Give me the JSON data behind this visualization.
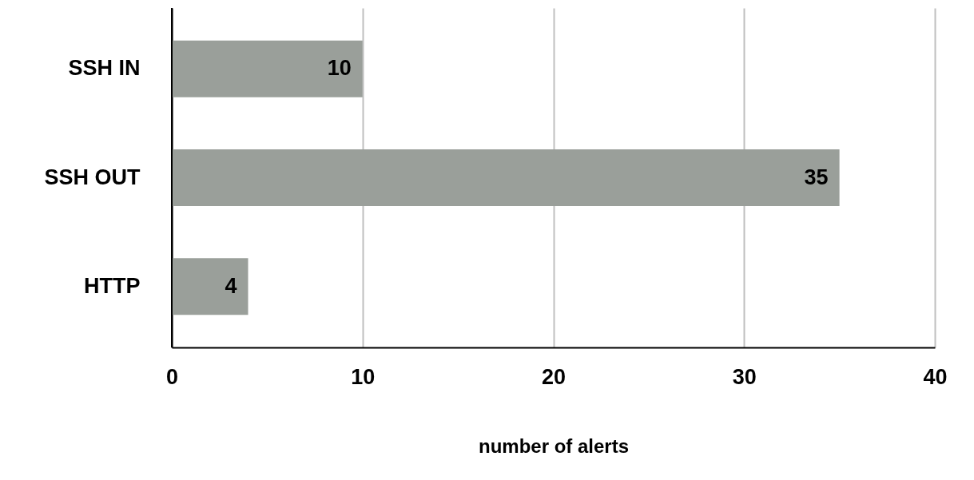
{
  "chart_data": {
    "type": "bar",
    "orientation": "horizontal",
    "categories": [
      "SSH IN",
      "SSH OUT",
      "HTTP"
    ],
    "values": [
      10,
      35,
      4
    ],
    "color": "#9a9f9a",
    "xlim": [
      0,
      40
    ],
    "xticks": [
      0,
      10,
      20,
      30,
      40
    ],
    "xlabel": "number of alerts",
    "grid": "x",
    "data_labels": true
  }
}
